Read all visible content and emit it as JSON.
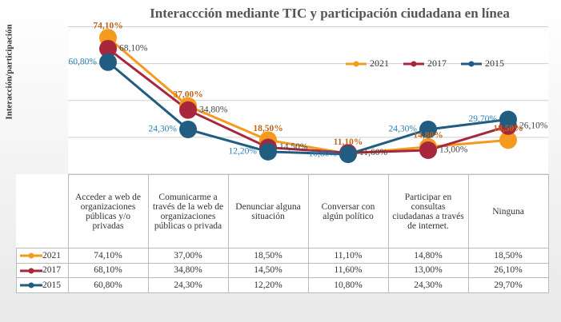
{
  "chart_data": {
    "type": "line",
    "title": "Interaccción mediante TIC y participación ciudadana en línea",
    "y_label": "Interacción/participación",
    "categories": [
      "Acceder a web de organizaciones públicas y/o privadas",
      "Comunicarme a través de la web de organizaciones públicas o privada",
      "Denunciar alguna situación",
      "Conversar con algún político",
      "Participar en consultas ciudadanas a través de internet.",
      "Ninguna"
    ],
    "series": [
      {
        "name": "2021",
        "color": "#f39a1f",
        "values": [
          74.1,
          37.0,
          18.5,
          11.1,
          14.8,
          18.5
        ],
        "value_labels": [
          "74,10%",
          "37,00%",
          "18,50%",
          "11,10%",
          "14,80%",
          "18,50%"
        ]
      },
      {
        "name": "2017",
        "color": "#a8273d",
        "values": [
          68.1,
          34.8,
          14.5,
          11.6,
          13.0,
          26.1
        ],
        "value_labels": [
          "68,10%",
          "34,80%",
          "14,50%",
          "11,60%",
          "13,00%",
          "26,10%"
        ]
      },
      {
        "name": "2015",
        "color": "#215d80",
        "values": [
          60.8,
          24.3,
          12.2,
          10.8,
          24.3,
          29.7
        ],
        "value_labels": [
          "60,80%",
          "24,30%",
          "12,20%",
          "10,80%",
          "24,30%",
          "29,70%"
        ]
      }
    ],
    "ylim": [
      0,
      80
    ],
    "yticks": [
      0,
      20,
      40,
      60,
      80
    ],
    "grid": true
  }
}
